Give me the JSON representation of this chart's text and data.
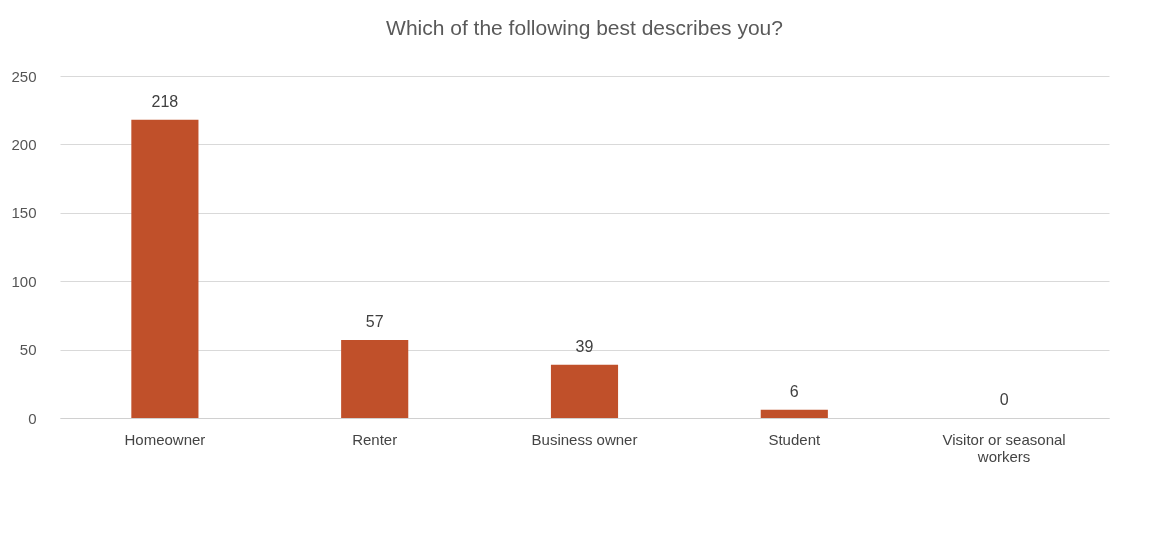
{
  "chart_data": {
    "type": "bar",
    "title": "Which of the following best describes you?",
    "categories": [
      "Homeowner",
      "Renter",
      "Business owner",
      "Student",
      "Visitor or seasonal workers"
    ],
    "values": [
      218,
      57,
      39,
      6,
      0
    ],
    "color": "#c0502a",
    "ylim": [
      0,
      250
    ],
    "yticks": [
      0,
      50,
      100,
      150,
      200,
      250
    ],
    "grid": "y",
    "data_labels": true
  }
}
